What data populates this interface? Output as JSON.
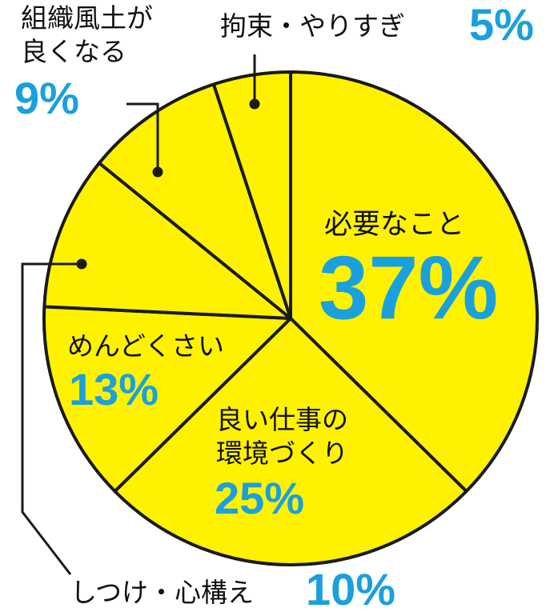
{
  "chart_data": {
    "type": "pie",
    "slices": [
      {
        "label": "必要なこと",
        "value": 37,
        "percent_label": "37%"
      },
      {
        "label": "良い仕事の環境づくり",
        "value": 25,
        "percent_label": "25%"
      },
      {
        "label": "めんどくさい",
        "value": 13,
        "percent_label": "13%"
      },
      {
        "label": "しつけ・心構え",
        "value": 10,
        "percent_label": "10%"
      },
      {
        "label": "組織風土が良くなる",
        "value": 9,
        "percent_label": "9%"
      },
      {
        "label": "拘束・やりすぎ",
        "value": 5,
        "percent_label": "5%"
      }
    ],
    "label_lines": {
      "kanjo": [
        "良い仕事の",
        "環境づくり"
      ],
      "soshiki": [
        "組織風土が",
        "良くなる"
      ]
    },
    "start": "12 o'clock",
    "direction": "clockwise",
    "fill_color": "#fff200",
    "stroke_color": "#1a1a1a",
    "label_color": "#111111",
    "percent_color": "#1aa0dc"
  }
}
